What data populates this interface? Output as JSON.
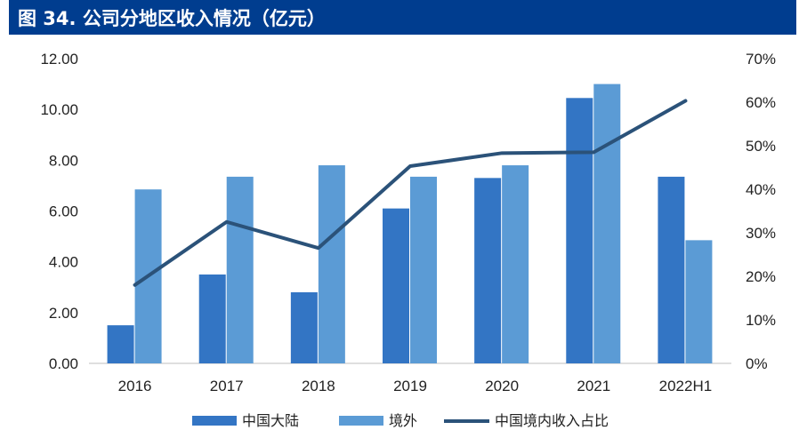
{
  "header": {
    "title": "图 34. 公司分地区收入情况（亿元）",
    "background": "#003d8f"
  },
  "chart_data": {
    "type": "bar",
    "categories": [
      "2016",
      "2017",
      "2018",
      "2019",
      "2020",
      "2021",
      "2022H1"
    ],
    "series": [
      {
        "name": "中国大陆",
        "type": "bar",
        "axis": "left",
        "color": "#3375c4",
        "values": [
          1.5,
          3.5,
          2.8,
          6.1,
          7.3,
          10.45,
          7.35
        ]
      },
      {
        "name": "境外",
        "type": "bar",
        "axis": "left",
        "color": "#5b9bd5",
        "values": [
          6.85,
          7.35,
          7.8,
          7.35,
          7.8,
          11.0,
          4.85
        ]
      },
      {
        "name": "中国境内收入占比",
        "type": "line",
        "axis": "right",
        "color": "#2b5279",
        "values": [
          0.18,
          0.325,
          0.265,
          0.453,
          0.483,
          0.485,
          0.603
        ]
      }
    ],
    "y_left": {
      "min": 0,
      "max": 12,
      "step": 2,
      "tick_labels": [
        "0.00",
        "2.00",
        "4.00",
        "6.00",
        "8.00",
        "10.00",
        "12.00"
      ]
    },
    "y_right": {
      "min": 0,
      "max": 0.7,
      "step": 0.1,
      "tick_labels": [
        "0%",
        "10%",
        "20%",
        "30%",
        "40%",
        "50%",
        "60%",
        "70%"
      ]
    },
    "grid": false,
    "legend_position": "bottom"
  }
}
